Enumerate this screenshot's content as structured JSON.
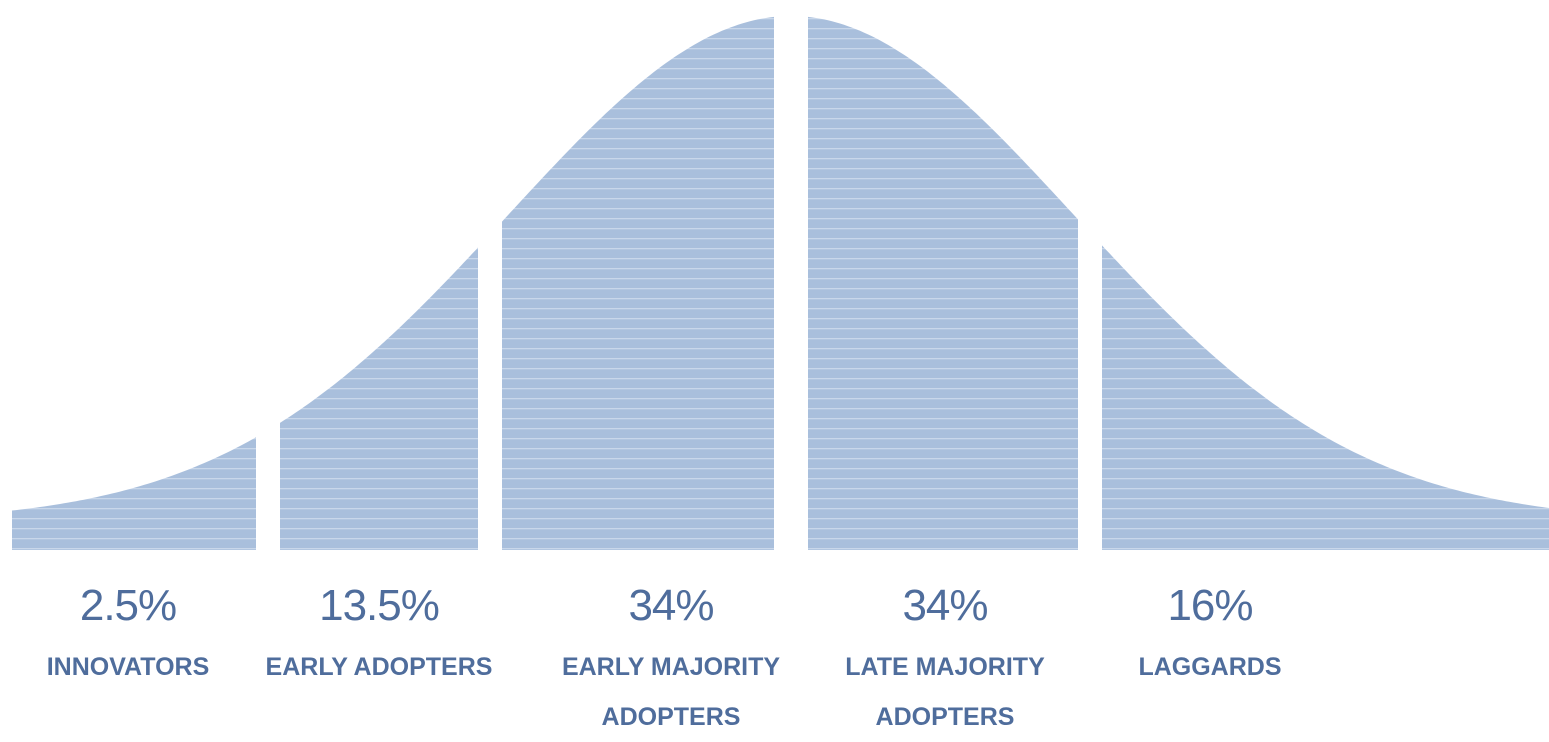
{
  "chart_data": {
    "type": "area",
    "description_type": "bell-curve",
    "segments": [
      {
        "percent_label": "2.5%",
        "value": 2.5,
        "category_lines": [
          "INNOVATORS"
        ]
      },
      {
        "percent_label": "13.5%",
        "value": 13.5,
        "category_lines": [
          "EARLY ADOPTERS"
        ]
      },
      {
        "percent_label": "34%",
        "value": 34,
        "category_lines": [
          "EARLY MAJORITY",
          "ADOPTERS"
        ]
      },
      {
        "percent_label": "34%",
        "value": 34,
        "category_lines": [
          "LATE MAJORITY",
          "ADOPTERS"
        ]
      },
      {
        "percent_label": "16%",
        "value": 16,
        "category_lines": [
          "LAGGARDS"
        ]
      }
    ],
    "colors": {
      "fill": "#a9bfdc",
      "stripe": "#c9d7ea",
      "text": "#4f6d9c"
    }
  }
}
